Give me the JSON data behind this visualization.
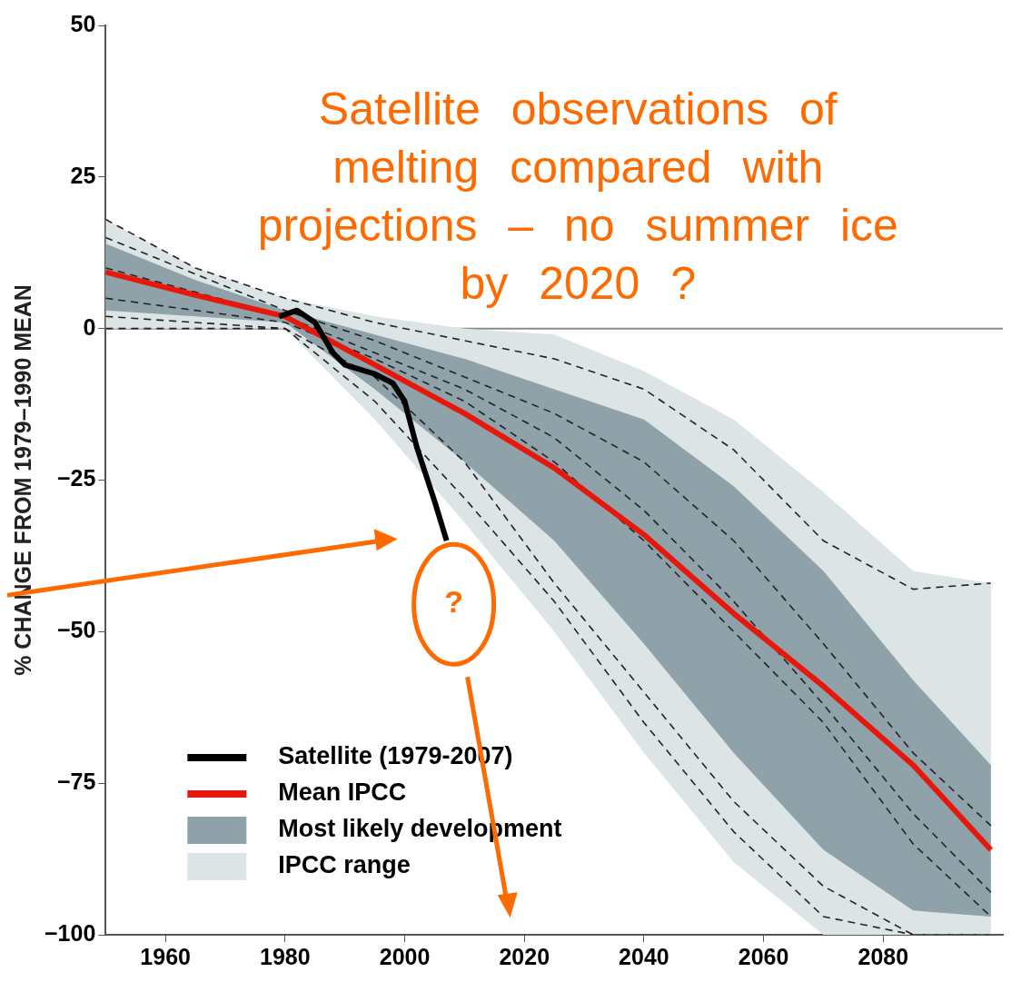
{
  "chart_data": {
    "type": "line",
    "title": "Satellite observations of melting compared with projections – no summer ice by 2020 ?",
    "ylabel": "% CHANGE FROM 1979–1990 MEAN",
    "xlim": [
      1950,
      2100
    ],
    "xticks": [
      1960,
      1980,
      2000,
      2020,
      2040,
      2060,
      2080
    ],
    "ylim": [
      -100,
      50
    ],
    "yticks": [
      -100,
      -75,
      -50,
      -25,
      0,
      25,
      50
    ],
    "grid": false,
    "legend": "bottom left",
    "annotations": [
      "?"
    ],
    "ref_lines": [
      {
        "axis": "y",
        "value": 0,
        "color": "#8a8a8a"
      }
    ],
    "x": [
      1950,
      1965,
      1980,
      1995,
      2010,
      2025,
      2040,
      2055,
      2070,
      2085,
      2098
    ],
    "series": [
      {
        "name": "IPCC range",
        "type": "area",
        "color": "#dde4e6",
        "values": [
          null,
          null,
          null,
          null,
          null,
          null,
          null,
          null,
          null,
          null,
          null
        ],
        "lower": [
          0,
          0,
          0,
          -15,
          -32,
          -50,
          -70,
          -88,
          -100,
          -100,
          -100
        ],
        "upper": [
          18,
          10,
          5,
          2,
          0,
          -1,
          -7,
          -15,
          -27,
          -40,
          -42
        ]
      },
      {
        "name": "Most likely development",
        "type": "area",
        "color": "#8fa2aa",
        "values": [
          null,
          null,
          null,
          null,
          null,
          null,
          null,
          null,
          null,
          null,
          null
        ],
        "lower": [
          3,
          2,
          1,
          -10,
          -22,
          -35,
          -52,
          -70,
          -86,
          -96,
          -97
        ],
        "upper": [
          14,
          8,
          3,
          -1,
          -5,
          -10,
          -15,
          -26,
          -40,
          -58,
          -72
        ]
      },
      {
        "color": "#222222",
        "line_style": "dashed",
        "values": [
          18,
          10,
          5,
          1,
          -2,
          -5,
          -10,
          -20,
          -35,
          -43,
          -42
        ]
      },
      {
        "color": "#222222",
        "line_style": "dashed",
        "values": [
          15,
          9,
          3,
          -2,
          -8,
          -14,
          -22,
          -35,
          -52,
          -70,
          -82
        ]
      },
      {
        "color": "#222222",
        "line_style": "dashed",
        "values": [
          10,
          6,
          2,
          -4,
          -10,
          -18,
          -30,
          -45,
          -62,
          -80,
          -93
        ]
      },
      {
        "color": "#222222",
        "line_style": "dashed",
        "values": [
          5,
          3,
          1,
          -5,
          -12,
          -22,
          -35,
          -50,
          -65,
          -85,
          -97
        ]
      },
      {
        "color": "#222222",
        "line_style": "dashed",
        "values": [
          0,
          0,
          0,
          -8,
          -22,
          -42,
          -60,
          -78,
          -92,
          -100,
          -100
        ]
      },
      {
        "color": "#222222",
        "line_style": "dashed",
        "values": [
          2,
          1,
          0,
          -12,
          -28,
          -45,
          -65,
          -83,
          -97,
          -100,
          -100
        ]
      },
      {
        "name": "Mean IPCC",
        "color": "#e8170c",
        "values": [
          9.3,
          5.5,
          2,
          -6,
          -14,
          -23,
          -34,
          -47,
          -59,
          -72,
          -86
        ]
      },
      {
        "name": "Satellite (1979-2007)",
        "color": "#000000",
        "x": [
          1979,
          1982,
          1985,
          1988,
          1990,
          1995,
          1998,
          2000,
          2002,
          2005,
          2007
        ],
        "values": [
          2,
          3,
          1,
          -4,
          -6,
          -7.5,
          -9,
          -12,
          -19.5,
          -28.5,
          -35
        ]
      }
    ]
  }
}
